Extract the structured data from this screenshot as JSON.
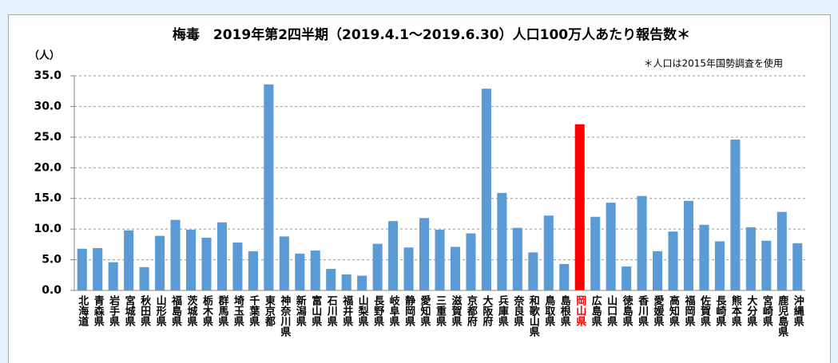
{
  "chart_data": {
    "type": "bar",
    "title": "梅毒　2019年第2四半期（2019.4.1～2019.6.30）人口100万人あたり報告数＊",
    "y_label": "（人）",
    "note": "＊人口は2015年国勢調査を使用",
    "categories": [
      "北海道",
      "青森県",
      "岩手県",
      "宮城県",
      "秋田県",
      "山形県",
      "福島県",
      "茨城県",
      "栃木県",
      "群馬県",
      "埼玉県",
      "千葉県",
      "東京都",
      "神奈川県",
      "新潟県",
      "富山県",
      "石川県",
      "福井県",
      "山梨県",
      "長野県",
      "岐阜県",
      "静岡県",
      "愛知県",
      "三重県",
      "滋賀県",
      "京都府",
      "大阪府",
      "兵庫県",
      "奈良県",
      "和歌山県",
      "鳥取県",
      "島根県",
      "岡山県",
      "広島県",
      "山口県",
      "徳島県",
      "香川県",
      "愛媛県",
      "高知県",
      "福岡県",
      "佐賀県",
      "長崎県",
      "熊本県",
      "大分県",
      "宮崎県",
      "鹿児島県",
      "沖縄県"
    ],
    "values": [
      6.8,
      6.9,
      4.6,
      9.8,
      3.8,
      8.9,
      11.5,
      9.9,
      8.6,
      11.1,
      7.8,
      6.4,
      33.6,
      8.8,
      6.0,
      6.5,
      3.5,
      2.6,
      2.4,
      7.6,
      11.3,
      7.0,
      11.8,
      9.9,
      7.1,
      9.3,
      32.9,
      15.9,
      10.2,
      6.2,
      12.2,
      4.3,
      27.1,
      12.0,
      14.3,
      3.9,
      15.4,
      6.4,
      9.6,
      14.6,
      10.7,
      8.0,
      24.6,
      10.3,
      8.1,
      12.8,
      7.7
    ],
    "color": "#5b9bd5",
    "colors": [
      "#5b9bd5",
      "#5b9bd5",
      "#5b9bd5",
      "#5b9bd5",
      "#5b9bd5",
      "#5b9bd5",
      "#5b9bd5",
      "#5b9bd5",
      "#5b9bd5",
      "#5b9bd5",
      "#5b9bd5",
      "#5b9bd5",
      "#5b9bd5",
      "#5b9bd5",
      "#5b9bd5",
      "#5b9bd5",
      "#5b9bd5",
      "#5b9bd5",
      "#5b9bd5",
      "#5b9bd5",
      "#5b9bd5",
      "#5b9bd5",
      "#5b9bd5",
      "#5b9bd5",
      "#5b9bd5",
      "#5b9bd5",
      "#5b9bd5",
      "#5b9bd5",
      "#5b9bd5",
      "#5b9bd5",
      "#5b9bd5",
      "#5b9bd5",
      "#ff0000",
      "#5b9bd5",
      "#5b9bd5",
      "#5b9bd5",
      "#5b9bd5",
      "#5b9bd5",
      "#5b9bd5",
      "#5b9bd5",
      "#5b9bd5",
      "#5b9bd5",
      "#5b9bd5",
      "#5b9bd5",
      "#5b9bd5",
      "#5b9bd5",
      "#5b9bd5"
    ],
    "ylim": [
      0,
      35
    ],
    "yticks": [
      {
        "value": 0,
        "label": "0.0"
      },
      {
        "value": 5,
        "label": "5.0"
      },
      {
        "value": 10,
        "label": "10.0"
      },
      {
        "value": 15,
        "label": "15.0"
      },
      {
        "value": 20,
        "label": "20.0"
      },
      {
        "value": 25,
        "label": "25.0"
      },
      {
        "value": 30,
        "label": "30.0"
      },
      {
        "value": 35,
        "label": "35.0"
      }
    ],
    "grid": true
  }
}
